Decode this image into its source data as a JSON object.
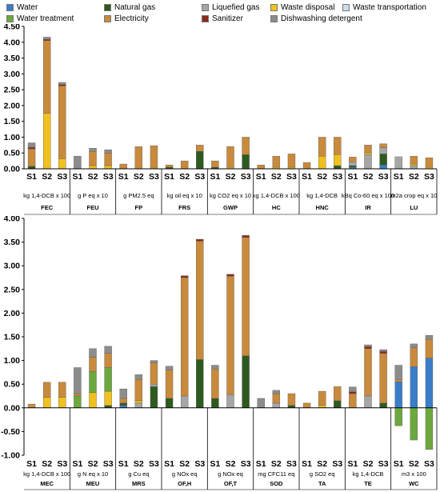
{
  "legend": [
    {
      "name": "Water",
      "color": "#3a7dc9"
    },
    {
      "name": "Natural gas",
      "color": "#2f5a1f"
    },
    {
      "name": "Liquefied gas",
      "color": "#a6a6a6"
    },
    {
      "name": "Waste disposal",
      "color": "#f0c11e"
    },
    {
      "name": "Waste transportation",
      "color": "#c9dcef"
    },
    {
      "name": "Water treatment",
      "color": "#6ca83d"
    },
    {
      "name": "Electricity",
      "color": "#c98a3c"
    },
    {
      "name": "Sanitizer",
      "color": "#8b2a1f"
    },
    {
      "name": "Dishwashing detergent",
      "color": "#8c8c8c"
    }
  ],
  "chart_data": [
    {
      "type": "bar",
      "stacked": true,
      "ylim": [
        0,
        4.5
      ],
      "yticks": [
        "0.00",
        "0.50",
        "1.00",
        "1.50",
        "2.00",
        "2.50",
        "3.00",
        "3.50",
        "4.00",
        "4.50"
      ],
      "grid": false,
      "scenarios": [
        "S1",
        "S2",
        "S3"
      ],
      "groups": [
        {
          "name": "FEC",
          "unit": "kg 1,4-DCB x 100",
          "bars": [
            [
              0,
              0.08,
              0,
              0,
              0,
              0,
              0.55,
              0.05,
              0.14
            ],
            [
              0,
              0,
              0,
              1.75,
              0,
              0,
              2.3,
              0.04,
              0.07
            ],
            [
              0,
              0,
              0,
              0.32,
              0,
              0,
              2.3,
              0.04,
              0.07
            ]
          ]
        },
        {
          "name": "FEU",
          "unit": "g P eq x 10",
          "bars": [
            [
              0,
              0,
              0,
              0,
              0,
              0,
              0,
              0,
              0.4
            ],
            [
              0,
              0,
              0,
              0.1,
              0,
              0,
              0.45,
              0,
              0.1
            ],
            [
              0,
              0,
              0,
              0.1,
              0,
              0,
              0.4,
              0,
              0.1
            ]
          ]
        },
        {
          "name": "FP",
          "unit": "g PM2.5 eq",
          "bars": [
            [
              0,
              0,
              0,
              0,
              0,
              0,
              0.15,
              0,
              0
            ],
            [
              0,
              0,
              0,
              0,
              0,
              0,
              0.7,
              0,
              0
            ],
            [
              0,
              0,
              0,
              0,
              0,
              0,
              0.73,
              0,
              0
            ]
          ]
        },
        {
          "name": "FRS",
          "unit": "kg oil eq x 10",
          "bars": [
            [
              0,
              0.05,
              0,
              0,
              0,
              0,
              0.07,
              0,
              0
            ],
            [
              0,
              0,
              0,
              0,
              0,
              0,
              0.25,
              0,
              0
            ],
            [
              0,
              0.55,
              0,
              0,
              0,
              0,
              0.2,
              0,
              0
            ]
          ]
        },
        {
          "name": "GWP",
          "unit": "kg CO2 eq x 10",
          "bars": [
            [
              0,
              0.05,
              0,
              0,
              0,
              0,
              0.2,
              0,
              0
            ],
            [
              0,
              0,
              0,
              0.05,
              0,
              0,
              0.65,
              0,
              0
            ],
            [
              0,
              0.45,
              0,
              0,
              0,
              0,
              0.55,
              0,
              0
            ]
          ]
        },
        {
          "name": "HC",
          "unit": "kg 1,4-DCB x 100",
          "bars": [
            [
              0,
              0,
              0,
              0,
              0,
              0,
              0.12,
              0,
              0
            ],
            [
              0,
              0,
              0,
              0.05,
              0,
              0,
              0.35,
              0,
              0
            ],
            [
              0,
              0,
              0,
              0.05,
              0,
              0,
              0.42,
              0,
              0
            ]
          ]
        },
        {
          "name": "HNC",
          "unit": "kg 1,4-DCB",
          "bars": [
            [
              0,
              0,
              0,
              0,
              0,
              0,
              0.2,
              0,
              0
            ],
            [
              0,
              0,
              0,
              0.4,
              0,
              0,
              0.6,
              0,
              0
            ],
            [
              0,
              0.1,
              0,
              0.35,
              0,
              0,
              0.55,
              0,
              0
            ]
          ]
        },
        {
          "name": "IR",
          "unit": "kBq Co-60 eq x 100",
          "bars": [
            [
              0.05,
              0.05,
              0.12,
              0,
              0,
              0,
              0.15,
              0,
              0
            ],
            [
              0,
              0,
              0.45,
              0.05,
              0,
              0,
              0.25,
              0,
              0
            ],
            [
              0.12,
              0.35,
              0.2,
              0,
              0,
              0,
              0.12,
              0,
              0
            ]
          ]
        },
        {
          "name": "LU",
          "unit": "m2a crop eq x 10",
          "bars": [
            [
              0,
              0,
              0.38,
              0,
              0,
              0,
              0,
              0,
              0
            ],
            [
              0,
              0,
              0.1,
              0.05,
              0,
              0,
              0.25,
              0,
              0
            ],
            [
              0,
              0,
              0,
              0.05,
              0,
              0,
              0.3,
              0,
              0
            ]
          ]
        }
      ]
    },
    {
      "type": "bar",
      "stacked": true,
      "ylim": [
        -1.0,
        4.0
      ],
      "yticks": [
        "-1.00",
        "-0.50",
        "0.00",
        "0.50",
        "1.00",
        "1.50",
        "2.00",
        "2.50",
        "3.00",
        "3.50",
        "4.00"
      ],
      "grid": false,
      "scenarios": [
        "S1",
        "S2",
        "S3"
      ],
      "groups": [
        {
          "name": "MEC",
          "unit": "kg 1,4-DCB x 100",
          "bars": [
            [
              0,
              0,
              0,
              0,
              0,
              0,
              0.08,
              0,
              0
            ],
            [
              0,
              0,
              0,
              0.22,
              0,
              0,
              0.32,
              0,
              0
            ],
            [
              0,
              0,
              0,
              0.22,
              0,
              0,
              0.32,
              0,
              0
            ]
          ]
        },
        {
          "name": "MEU",
          "unit": "g N eq x 10",
          "bars": [
            [
              0,
              0,
              0,
              0,
              0,
              0.25,
              0.05,
              0,
              0.55
            ],
            [
              0,
              0,
              0,
              0.32,
              0,
              0.45,
              0.3,
              0,
              0.18
            ],
            [
              0,
              0.05,
              0,
              0.3,
              0,
              0.5,
              0.3,
              0,
              0.15
            ]
          ]
        },
        {
          "name": "MRS",
          "unit": "g Cu eq",
          "bars": [
            [
              0.05,
              0.05,
              0,
              0,
              0,
              0,
              0.1,
              0,
              0.2
            ],
            [
              0,
              0,
              0.1,
              0.05,
              0,
              0,
              0.45,
              0,
              0.1
            ],
            [
              0,
              0.45,
              0.05,
              0,
              0,
              0,
              0.45,
              0,
              0.05
            ]
          ]
        },
        {
          "name": "OF,H",
          "unit": "g NOx eq",
          "bars": [
            [
              0,
              0.2,
              0,
              0,
              0,
              0,
              0.6,
              0,
              0.08
            ],
            [
              0,
              0,
              0.25,
              0,
              0,
              0,
              2.5,
              0.04,
              0
            ],
            [
              0,
              1.02,
              0,
              0,
              0,
              0,
              2.5,
              0.04,
              0
            ]
          ]
        },
        {
          "name": "OF,T",
          "unit": "g NOx eq",
          "bars": [
            [
              0,
              0.2,
              0,
              0,
              0,
              0,
              0.62,
              0,
              0.08
            ],
            [
              0,
              0,
              0.28,
              0,
              0,
              0,
              2.5,
              0.04,
              0
            ],
            [
              0,
              1.1,
              0,
              0,
              0,
              0,
              2.5,
              0.04,
              0
            ]
          ]
        },
        {
          "name": "SOD",
          "unit": "mg CFC11 eq",
          "bars": [
            [
              0,
              0,
              0,
              0,
              0,
              0,
              0,
              0,
              0.2
            ],
            [
              0,
              0,
              0.1,
              0,
              0,
              0,
              0.2,
              0,
              0.07
            ],
            [
              0,
              0.05,
              0,
              0,
              0,
              0,
              0.25,
              0,
              0
            ]
          ]
        },
        {
          "name": "TA",
          "unit": "g SO2 eq",
          "bars": [
            [
              0,
              0,
              0,
              0,
              0,
              0,
              0.1,
              0,
              0
            ],
            [
              0,
              0,
              0,
              0.05,
              0,
              0,
              0.3,
              0,
              0
            ],
            [
              0,
              0.15,
              0,
              0,
              0,
              0,
              0.3,
              0,
              0
            ]
          ]
        },
        {
          "name": "TE",
          "unit": "kg 1,4-DCB",
          "bars": [
            [
              0,
              0,
              0,
              0,
              0,
              0,
              0.3,
              0.04,
              0.1
            ],
            [
              0,
              0,
              0.25,
              0,
              0,
              0,
              1.0,
              0.04,
              0.04
            ],
            [
              0,
              0.1,
              0,
              0,
              0,
              0,
              1.05,
              0.04,
              0.04
            ]
          ]
        },
        {
          "name": "WC",
          "unit": "m3 x 100",
          "bars": [
            [
              0.55,
              0,
              0,
              0,
              0,
              0,
              0.05,
              0,
              0.3
            ],
            [
              0.87,
              0,
              0,
              0,
              0,
              0,
              0.4,
              0,
              0.08
            ],
            [
              1.05,
              0,
              0,
              0,
              0,
              0,
              0.4,
              0,
              0.08
            ]
          ],
          "negative": [
            -0.38,
            -0.68,
            -0.88
          ]
        }
      ]
    }
  ]
}
